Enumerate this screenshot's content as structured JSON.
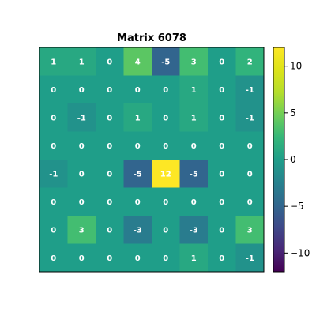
{
  "chart_data": {
    "type": "heatmap",
    "title": "Matrix 6078",
    "colormap": "viridis",
    "vmin": -12,
    "vmax": 12,
    "show_axis_ticks": false,
    "matrix": [
      [
        1,
        1,
        0,
        4,
        -5,
        3,
        0,
        2
      ],
      [
        0,
        0,
        0,
        0,
        0,
        1,
        0,
        -1
      ],
      [
        0,
        -1,
        0,
        1,
        0,
        1,
        0,
        -1
      ],
      [
        0,
        0,
        0,
        0,
        0,
        0,
        0,
        0
      ],
      [
        -1,
        0,
        0,
        -5,
        12,
        -5,
        0,
        0
      ],
      [
        0,
        0,
        0,
        0,
        0,
        0,
        0,
        0
      ],
      [
        0,
        3,
        0,
        -3,
        0,
        -3,
        0,
        3
      ],
      [
        0,
        0,
        0,
        0,
        0,
        1,
        0,
        -1
      ]
    ],
    "colorbar": {
      "ticks": [
        10,
        5,
        0,
        -5,
        -10
      ],
      "tick_labels": [
        "10",
        "5",
        "0",
        "−5",
        "−10"
      ]
    }
  }
}
